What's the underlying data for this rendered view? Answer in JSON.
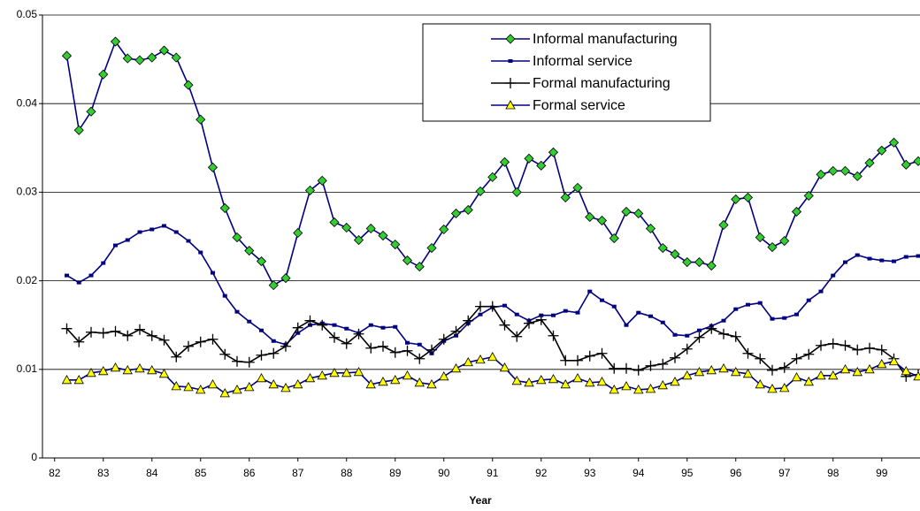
{
  "chart_data": {
    "type": "line",
    "x_label": "Year",
    "x": [
      82.25,
      82.5,
      82.75,
      83,
      83.25,
      83.5,
      83.75,
      84,
      84.25,
      84.5,
      84.75,
      85,
      85.25,
      85.5,
      85.75,
      86,
      86.25,
      86.5,
      86.75,
      87,
      87.25,
      87.5,
      87.75,
      88,
      88.25,
      88.5,
      88.75,
      89,
      89.25,
      89.5,
      89.75,
      90,
      90.25,
      90.5,
      90.75,
      91,
      91.25,
      91.5,
      91.75,
      92,
      92.25,
      92.5,
      92.75,
      93,
      93.25,
      93.5,
      93.75,
      94,
      94.25,
      94.5,
      94.75,
      95,
      95.25,
      95.5,
      95.75,
      96,
      96.25,
      96.5,
      96.75,
      97,
      97.25,
      97.5,
      97.75,
      98,
      98.25,
      98.5,
      98.75,
      99,
      99.25,
      99.5,
      99.75
    ],
    "xlim": [
      81.75,
      99.75
    ],
    "xticks": [
      82,
      83,
      84,
      85,
      86,
      87,
      88,
      89,
      90,
      91,
      92,
      93,
      94,
      95,
      96,
      97,
      98,
      99
    ],
    "ylim": [
      0,
      0.05
    ],
    "yticks": [
      0,
      0.01,
      0.02,
      0.03,
      0.04,
      0.05
    ],
    "grid": true,
    "legend": "top-right",
    "series": [
      {
        "name": "Informal manufacturing",
        "color": "#000080",
        "marker": "diamond",
        "marker_color": "#33cc33",
        "values": [
          0.0454,
          0.037,
          0.0391,
          0.0433,
          0.047,
          0.0451,
          0.0449,
          0.0452,
          0.046,
          0.0452,
          0.0421,
          0.0382,
          0.0328,
          0.0282,
          0.0249,
          0.0234,
          0.0222,
          0.0195,
          0.0203,
          0.0254,
          0.0302,
          0.0313,
          0.0266,
          0.026,
          0.0246,
          0.0259,
          0.0251,
          0.0241,
          0.0223,
          0.0216,
          0.0237,
          0.0258,
          0.0276,
          0.028,
          0.0301,
          0.0317,
          0.0334,
          0.03,
          0.0338,
          0.033,
          0.0345,
          0.0294,
          0.0305,
          0.0272,
          0.0268,
          0.0248,
          0.0278,
          0.0276,
          0.0259,
          0.0237,
          0.023,
          0.0221,
          0.0221,
          0.0217,
          0.0263,
          0.0292,
          0.0294,
          0.0249,
          0.0238,
          0.0245,
          0.0278,
          0.0296,
          0.032,
          0.0324,
          0.0324,
          0.0318,
          0.0333,
          0.0347,
          0.0356,
          0.0331,
          0.0335
        ]
      },
      {
        "name": "Informal service",
        "color": "#000080",
        "marker": "square",
        "marker_color": "#000080",
        "values": [
          0.0206,
          0.0198,
          0.0206,
          0.022,
          0.024,
          0.0246,
          0.0255,
          0.0258,
          0.0262,
          0.0255,
          0.0245,
          0.0232,
          0.0209,
          0.0183,
          0.0165,
          0.0154,
          0.0144,
          0.0132,
          0.0128,
          0.0141,
          0.015,
          0.0152,
          0.015,
          0.0146,
          0.0141,
          0.015,
          0.0147,
          0.0148,
          0.013,
          0.0128,
          0.0118,
          0.0132,
          0.0138,
          0.0152,
          0.0162,
          0.017,
          0.0172,
          0.0162,
          0.0155,
          0.0161,
          0.0161,
          0.0166,
          0.0164,
          0.0188,
          0.0178,
          0.0171,
          0.015,
          0.0164,
          0.016,
          0.0153,
          0.0139,
          0.0138,
          0.0144,
          0.0149,
          0.0155,
          0.0168,
          0.0173,
          0.0175,
          0.0157,
          0.0158,
          0.0162,
          0.0178,
          0.0188,
          0.0206,
          0.0221,
          0.0229,
          0.0225,
          0.0223,
          0.0222,
          0.0227,
          0.0228
        ]
      },
      {
        "name": "Formal manufacturing",
        "color": "#000000",
        "marker": "plus",
        "marker_color": "#000000",
        "values": [
          0.0146,
          0.0131,
          0.0142,
          0.0141,
          0.0143,
          0.0138,
          0.0145,
          0.0138,
          0.0133,
          0.0114,
          0.0126,
          0.0131,
          0.0134,
          0.0117,
          0.0109,
          0.0108,
          0.0116,
          0.0118,
          0.0126,
          0.0147,
          0.0155,
          0.015,
          0.0136,
          0.0129,
          0.014,
          0.0124,
          0.0126,
          0.0119,
          0.0121,
          0.0112,
          0.0122,
          0.0134,
          0.0143,
          0.0155,
          0.0171,
          0.0171,
          0.015,
          0.0137,
          0.0152,
          0.0156,
          0.0138,
          0.011,
          0.011,
          0.0115,
          0.0118,
          0.0101,
          0.0101,
          0.0099,
          0.0104,
          0.0106,
          0.0113,
          0.0123,
          0.0136,
          0.0146,
          0.014,
          0.0137,
          0.0118,
          0.0112,
          0.0099,
          0.0102,
          0.0112,
          0.0117,
          0.0127,
          0.0129,
          0.0127,
          0.0122,
          0.0124,
          0.0122,
          0.0112,
          0.0092,
          0.0094
        ]
      },
      {
        "name": "Formal service",
        "color": "#000080",
        "marker": "triangle",
        "marker_color": "#ffff00",
        "values": [
          0.0088,
          0.0088,
          0.0096,
          0.0098,
          0.0102,
          0.0099,
          0.0101,
          0.0099,
          0.0095,
          0.0081,
          0.008,
          0.0077,
          0.0083,
          0.0073,
          0.0077,
          0.008,
          0.009,
          0.0083,
          0.0079,
          0.0083,
          0.009,
          0.0093,
          0.0096,
          0.0096,
          0.0097,
          0.0083,
          0.0086,
          0.0088,
          0.0093,
          0.0085,
          0.0083,
          0.0092,
          0.0101,
          0.0108,
          0.0111,
          0.0114,
          0.0102,
          0.0087,
          0.0085,
          0.0088,
          0.0089,
          0.0083,
          0.009,
          0.0085,
          0.0086,
          0.0077,
          0.0081,
          0.0077,
          0.0078,
          0.0082,
          0.0086,
          0.0093,
          0.0097,
          0.0099,
          0.0101,
          0.0097,
          0.0095,
          0.0083,
          0.0078,
          0.0079,
          0.0091,
          0.0086,
          0.0093,
          0.0093,
          0.01,
          0.0097,
          0.01,
          0.0106,
          0.0109,
          0.0098,
          0.0092
        ]
      }
    ]
  }
}
